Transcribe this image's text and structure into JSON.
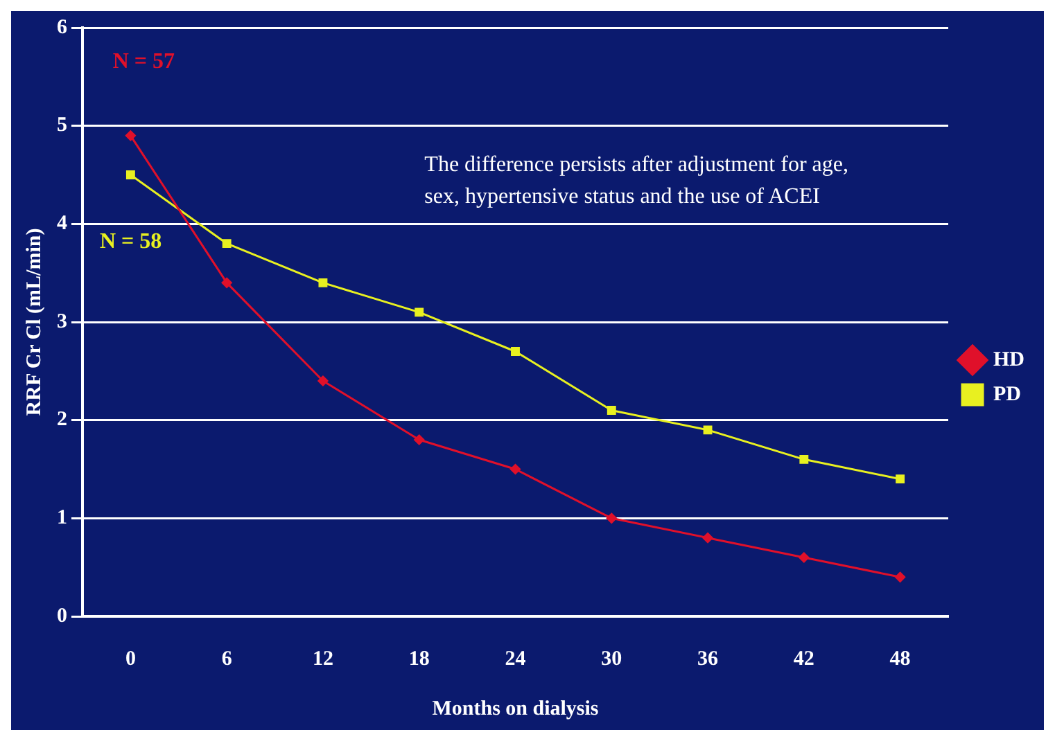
{
  "chart_data": {
    "type": "line",
    "xlabel": "Months on dialysis",
    "ylabel": "RRF Cr Cl (mL/min)",
    "categories": [
      "0",
      "6",
      "12",
      "18",
      "24",
      "30",
      "36",
      "42",
      "48"
    ],
    "series": [
      {
        "name": "HD",
        "color": "#e0102a",
        "marker": "diamond",
        "values": [
          4.9,
          3.4,
          2.4,
          1.8,
          1.5,
          1.0,
          0.8,
          0.6,
          0.4
        ]
      },
      {
        "name": "PD",
        "color": "#e8f020",
        "marker": "square",
        "values": [
          4.5,
          3.8,
          3.4,
          3.1,
          2.7,
          2.1,
          1.9,
          1.6,
          1.4
        ]
      }
    ],
    "ylim": [
      0,
      6
    ],
    "yticks": [
      0,
      1,
      2,
      3,
      4,
      5,
      6
    ],
    "grid": "y",
    "legend": "right",
    "line_style": "solid",
    "annotations": [
      "N = 57",
      "N = 58",
      "The difference persists after adjustment for age, sex, hypertensive status and the use of ACEI"
    ]
  }
}
